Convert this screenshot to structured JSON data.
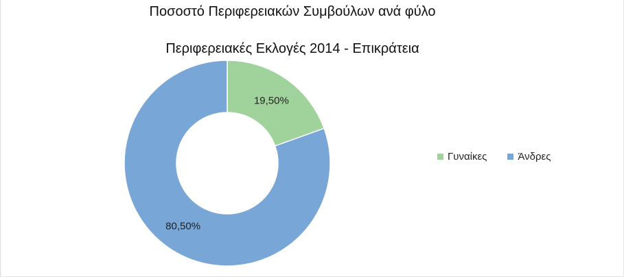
{
  "chart_data": {
    "type": "pie",
    "variant": "donut",
    "title": "Ποσοστό Περιφερειακών Συμβούλων ανά φύλο",
    "subtitle": "Περιφερειακές Εκλογές 2014 - Επικράτεια",
    "categories": [
      "Γυναίκες",
      "Άνδρες"
    ],
    "values": [
      19.5,
      80.5
    ],
    "data_labels": [
      "19,50%",
      "80,50%"
    ],
    "colors": [
      "#9fd39b",
      "#78a6d6"
    ],
    "legend_placement": "right"
  }
}
